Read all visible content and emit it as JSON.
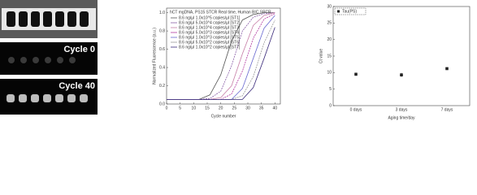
{
  "image_labels": [
    "Cycle 0",
    "Cycle 40"
  ],
  "chart_data": [
    {
      "type": "line",
      "title": "hCT mgDNA, PS15 STCR Real time, Human BIC SPCR",
      "x_label": "Cycle number",
      "y_label": "Normalized Fluorescence (a.u.)",
      "x": [
        0,
        4,
        8,
        12,
        16,
        20,
        24,
        28,
        32,
        36,
        40
      ],
      "xlim": [
        0,
        42
      ],
      "xticks": [
        0,
        5,
        10,
        15,
        20,
        25,
        30,
        35,
        40
      ],
      "ylim": [
        0,
        1.05
      ],
      "yticks": [
        {
          "value": 0,
          "label": "0.0"
        },
        0.2,
        0.4,
        0.6,
        0.8,
        {
          "value": 1,
          "label": "1.0"
        }
      ],
      "legend": "upper left",
      "series": [
        {
          "name": "8.6 ng/µl 1.0x10^5 copies/µl [ST1]",
          "color": "#555555",
          "values": [
            0.05,
            0.05,
            0.05,
            0.05,
            0.1,
            0.32,
            0.69,
            0.92,
            0.98,
            1.0,
            1.0
          ]
        },
        {
          "name": "8.6 ng/µl 5.0x10^4 copies/µl [ST2]",
          "color": "#8a5fa8",
          "values": [
            0.05,
            0.05,
            0.05,
            0.05,
            0.06,
            0.14,
            0.42,
            0.8,
            0.95,
            0.99,
            1.0
          ]
        },
        {
          "name": "8.6 ng/µl 1.0x10^4 copies/µl [ST3]",
          "color": "#c77fa8",
          "values": [
            0.05,
            0.05,
            0.05,
            0.05,
            0.05,
            0.07,
            0.2,
            0.55,
            0.86,
            0.97,
            1.0
          ]
        },
        {
          "name": "8.6 ng/µl 5.0x10^3 copies/µl [ST4]",
          "color": "#b23aa0",
          "values": [
            0.05,
            0.05,
            0.05,
            0.05,
            0.05,
            0.05,
            0.11,
            0.36,
            0.72,
            0.93,
            0.99
          ]
        },
        {
          "name": "8.6 ng/µl 1.0x10^3 copies/µl [ST5]",
          "color": "#6a6ad0",
          "values": [
            0.05,
            0.05,
            0.05,
            0.05,
            0.05,
            0.05,
            0.05,
            0.17,
            0.5,
            0.83,
            0.97
          ]
        },
        {
          "name": "8.6 ng/µl 5.0x10^2 copies/µl [ST6]",
          "color": "#999999",
          "values": [
            0.05,
            0.05,
            0.05,
            0.05,
            0.05,
            0.05,
            0.05,
            0.09,
            0.3,
            0.67,
            0.92
          ]
        },
        {
          "name": "8.6 ng/µl 1.0x10^2 copies/µl [ST7]",
          "color": "#3a2a7a",
          "values": [
            0.05,
            0.05,
            0.05,
            0.05,
            0.05,
            0.05,
            0.05,
            0.05,
            0.18,
            0.5,
            0.84
          ]
        }
      ]
    },
    {
      "type": "scatter",
      "x_label": "Aging time/day",
      "y_label": "Ct value",
      "categories": [
        "0 days",
        "3 days",
        "7 days"
      ],
      "ylim": [
        0,
        30
      ],
      "yticks": [
        0,
        5,
        10,
        15,
        20,
        25,
        30
      ],
      "legend": "upper left",
      "series": [
        {
          "name": "Tau(PS)",
          "color": "#222222",
          "values": [
            9.5,
            9.3,
            11.2
          ],
          "errors": [
            0.5,
            0.6,
            0.4
          ]
        }
      ]
    }
  ]
}
